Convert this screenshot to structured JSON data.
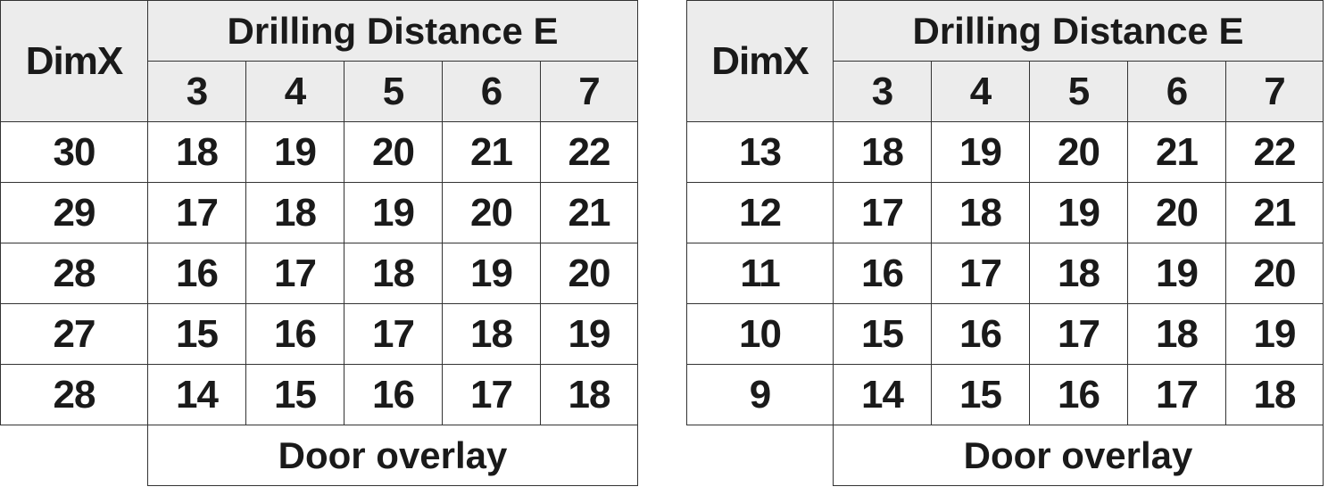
{
  "tables": [
    {
      "row_header_label": "DimX",
      "group_header": "Drilling Distance E",
      "columns": [
        "3",
        "4",
        "5",
        "6",
        "7"
      ],
      "rows": [
        {
          "dimx": "30",
          "values": [
            "18",
            "19",
            "20",
            "21",
            "22"
          ]
        },
        {
          "dimx": "29",
          "values": [
            "17",
            "18",
            "19",
            "20",
            "21"
          ]
        },
        {
          "dimx": "28",
          "values": [
            "16",
            "17",
            "18",
            "19",
            "20"
          ]
        },
        {
          "dimx": "27",
          "values": [
            "15",
            "16",
            "17",
            "18",
            "19"
          ]
        },
        {
          "dimx": "28",
          "values": [
            "14",
            "15",
            "16",
            "17",
            "18"
          ]
        }
      ],
      "footer": "Door overlay"
    },
    {
      "row_header_label": "DimX",
      "group_header": "Drilling Distance E",
      "columns": [
        "3",
        "4",
        "5",
        "6",
        "7"
      ],
      "rows": [
        {
          "dimx": "13",
          "values": [
            "18",
            "19",
            "20",
            "21",
            "22"
          ]
        },
        {
          "dimx": "12",
          "values": [
            "17",
            "18",
            "19",
            "20",
            "21"
          ]
        },
        {
          "dimx": "11",
          "values": [
            "16",
            "17",
            "18",
            "19",
            "20"
          ]
        },
        {
          "dimx": "10",
          "values": [
            "15",
            "16",
            "17",
            "18",
            "19"
          ]
        },
        {
          "dimx": "9",
          "values": [
            "14",
            "15",
            "16",
            "17",
            "18"
          ]
        }
      ],
      "footer": "Door overlay"
    }
  ],
  "colors": {
    "header_bg": "#ececec",
    "border": "#333333",
    "text": "#1a1a1a"
  }
}
